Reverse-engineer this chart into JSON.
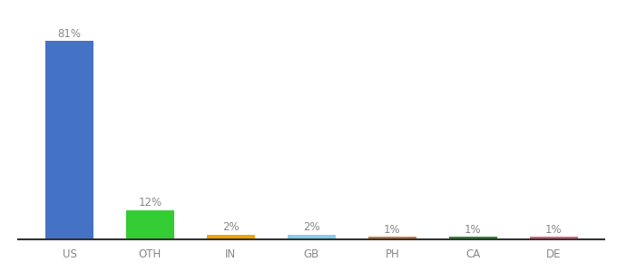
{
  "categories": [
    "US",
    "OTH",
    "IN",
    "GB",
    "PH",
    "CA",
    "DE"
  ],
  "values": [
    81,
    12,
    2,
    2,
    1,
    1,
    1
  ],
  "labels": [
    "81%",
    "12%",
    "2%",
    "2%",
    "1%",
    "1%",
    "1%"
  ],
  "bar_colors": [
    "#4472c4",
    "#33cc33",
    "#f0a500",
    "#87ceeb",
    "#c87a3a",
    "#2d8a2d",
    "#e06080"
  ],
  "ylim": [
    0,
    90
  ],
  "background_color": "#ffffff",
  "label_fontsize": 8.5,
  "tick_fontsize": 8.5,
  "bar_width": 0.6,
  "label_color": "#888888",
  "tick_color": "#888888"
}
